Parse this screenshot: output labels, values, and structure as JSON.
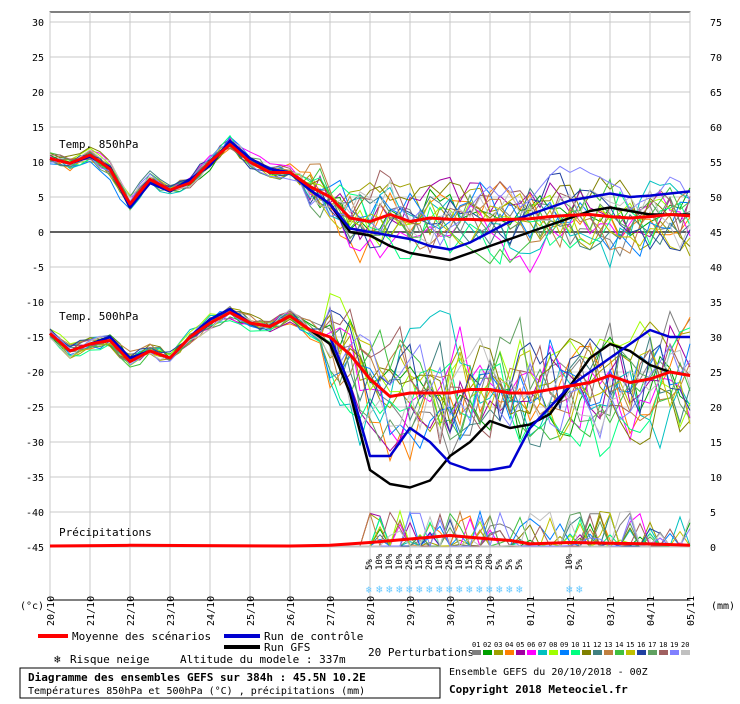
{
  "chart_data": {
    "type": "line",
    "x_dates": [
      "20/10",
      "21/10",
      "22/10",
      "23/10",
      "24/10",
      "25/10",
      "26/10",
      "27/10",
      "28/10",
      "29/10",
      "30/10",
      "31/10",
      "01/11",
      "02/11",
      "03/11",
      "04/11",
      "05/11"
    ],
    "left_axis": {
      "unit_label": "(°c)",
      "ticks": [
        30,
        25,
        20,
        15,
        10,
        5,
        0,
        -5,
        -10,
        -15,
        -20,
        -25,
        -30,
        -35,
        -40,
        -45
      ]
    },
    "right_axis": {
      "unit_label": "(mm)",
      "ticks": [
        75,
        70,
        65,
        60,
        55,
        50,
        45,
        40,
        35,
        30,
        25,
        20,
        15,
        10,
        5,
        0
      ]
    },
    "panels": [
      {
        "label": "Temp. 850hPa",
        "mean": [
          [
            0,
            10.5
          ],
          [
            0.5,
            9.8
          ],
          [
            1,
            11
          ],
          [
            1.5,
            9
          ],
          [
            2,
            4
          ],
          [
            2.5,
            7.5
          ],
          [
            3,
            6
          ],
          [
            3.5,
            7
          ],
          [
            4,
            10
          ],
          [
            4.5,
            12.5
          ],
          [
            5,
            10
          ],
          [
            5.5,
            8.5
          ],
          [
            6,
            8.5
          ],
          [
            6.5,
            6.5
          ],
          [
            7,
            5
          ],
          [
            7.5,
            2
          ],
          [
            8,
            1.5
          ],
          [
            8.5,
            2.5
          ],
          [
            9,
            1.5
          ],
          [
            9.5,
            2
          ],
          [
            10,
            1.8
          ],
          [
            10.5,
            1.8
          ],
          [
            11,
            1.7
          ],
          [
            11.5,
            1.8
          ],
          [
            12,
            1.9
          ],
          [
            12.5,
            2.2
          ],
          [
            13,
            2.4
          ],
          [
            13.5,
            2.5
          ],
          [
            14,
            2.2
          ],
          [
            14.5,
            2.0
          ],
          [
            15,
            2.2
          ],
          [
            15.5,
            2.5
          ],
          [
            16,
            2.3
          ]
        ],
        "control": [
          [
            0,
            10.5
          ],
          [
            0.5,
            9.8
          ],
          [
            1,
            10.8
          ],
          [
            1.5,
            9.2
          ],
          [
            2,
            3.5
          ],
          [
            2.5,
            7
          ],
          [
            3,
            5.8
          ],
          [
            3.5,
            7.5
          ],
          [
            4,
            9.5
          ],
          [
            4.5,
            13
          ],
          [
            5,
            10.5
          ],
          [
            5.5,
            9
          ],
          [
            6,
            8.5
          ],
          [
            6.5,
            6
          ],
          [
            7,
            4
          ],
          [
            7.5,
            0.5
          ],
          [
            8,
            0
          ],
          [
            8.5,
            -0.5
          ],
          [
            9,
            -1
          ],
          [
            9.5,
            -2
          ],
          [
            10,
            -2.5
          ],
          [
            10.5,
            -1.5
          ],
          [
            11,
            0
          ],
          [
            11.5,
            1.5
          ],
          [
            12,
            2.5
          ],
          [
            12.5,
            3.5
          ],
          [
            13,
            4.5
          ],
          [
            13.5,
            5
          ],
          [
            14,
            5.5
          ],
          [
            14.5,
            5
          ],
          [
            15,
            5.2
          ],
          [
            15.5,
            5.5
          ],
          [
            16,
            5.8
          ]
        ],
        "gfs": [
          [
            0,
            10.5
          ],
          [
            0.5,
            9.8
          ],
          [
            1,
            10.8
          ],
          [
            1.5,
            9.2
          ],
          [
            2,
            3.5
          ],
          [
            2.5,
            7
          ],
          [
            3,
            5.8
          ],
          [
            3.5,
            7.5
          ],
          [
            4,
            9.5
          ],
          [
            4.5,
            13
          ],
          [
            5,
            10.5
          ],
          [
            5.5,
            9
          ],
          [
            6,
            8.5
          ],
          [
            6.5,
            6
          ],
          [
            7,
            4
          ],
          [
            7.5,
            0
          ],
          [
            8,
            -0.5
          ],
          [
            8.5,
            -2
          ],
          [
            9,
            -3
          ],
          [
            9.5,
            -3.5
          ],
          [
            10,
            -4
          ],
          [
            10.5,
            -3
          ],
          [
            11,
            -2
          ],
          [
            11.5,
            -1
          ],
          [
            12,
            0
          ],
          [
            12.5,
            1
          ],
          [
            13,
            2
          ],
          [
            13.5,
            3
          ],
          [
            14,
            3.5
          ],
          [
            14.5,
            3
          ],
          [
            15,
            2.5
          ],
          [
            15.5,
            2.5
          ],
          [
            16,
            2.5
          ]
        ]
      },
      {
        "label": "Temp. 500hPa",
        "mean": [
          [
            0,
            -14.5
          ],
          [
            0.5,
            -17
          ],
          [
            1,
            -16
          ],
          [
            1.5,
            -15.5
          ],
          [
            2,
            -18.5
          ],
          [
            2.5,
            -17
          ],
          [
            3,
            -18
          ],
          [
            3.5,
            -15
          ],
          [
            4,
            -13
          ],
          [
            4.5,
            -11.5
          ],
          [
            5,
            -13
          ],
          [
            5.5,
            -13.5
          ],
          [
            6,
            -12
          ],
          [
            6.5,
            -14
          ],
          [
            7,
            -15
          ],
          [
            7.5,
            -17.5
          ],
          [
            8,
            -21
          ],
          [
            8.5,
            -23.5
          ],
          [
            9,
            -23
          ],
          [
            9.5,
            -23
          ],
          [
            10,
            -23
          ],
          [
            10.5,
            -22.5
          ],
          [
            11,
            -22.5
          ],
          [
            11.5,
            -23
          ],
          [
            12,
            -23
          ],
          [
            12.5,
            -22.5
          ],
          [
            13,
            -22
          ],
          [
            13.5,
            -21.5
          ],
          [
            14,
            -20.5
          ],
          [
            14.5,
            -21.5
          ],
          [
            15,
            -21
          ],
          [
            15.5,
            -20
          ],
          [
            16,
            -20.5
          ]
        ],
        "control": [
          [
            0,
            -14.5
          ],
          [
            0.5,
            -17
          ],
          [
            1,
            -16
          ],
          [
            1.5,
            -15
          ],
          [
            2,
            -18
          ],
          [
            2.5,
            -17
          ],
          [
            3,
            -18
          ],
          [
            3.5,
            -15
          ],
          [
            4,
            -12.5
          ],
          [
            4.5,
            -11
          ],
          [
            5,
            -13
          ],
          [
            5.5,
            -13.5
          ],
          [
            6,
            -12
          ],
          [
            6.5,
            -14
          ],
          [
            7,
            -15
          ],
          [
            7.5,
            -22
          ],
          [
            8,
            -32
          ],
          [
            8.5,
            -32
          ],
          [
            9,
            -28
          ],
          [
            9.5,
            -30
          ],
          [
            10,
            -33
          ],
          [
            10.5,
            -34
          ],
          [
            11,
            -34
          ],
          [
            11.5,
            -33.5
          ],
          [
            12,
            -28
          ],
          [
            12.5,
            -25
          ],
          [
            13,
            -22
          ],
          [
            13.5,
            -20
          ],
          [
            14,
            -18
          ],
          [
            14.5,
            -16
          ],
          [
            15,
            -14
          ],
          [
            15.5,
            -15
          ],
          [
            16,
            -15
          ]
        ],
        "gfs": [
          [
            0,
            -14.5
          ],
          [
            0.5,
            -17
          ],
          [
            1,
            -16
          ],
          [
            1.5,
            -15
          ],
          [
            2,
            -18
          ],
          [
            2.5,
            -17
          ],
          [
            3,
            -18
          ],
          [
            3.5,
            -15
          ],
          [
            4,
            -12.5
          ],
          [
            4.5,
            -11
          ],
          [
            5,
            -13
          ],
          [
            5.5,
            -13.5
          ],
          [
            6,
            -12
          ],
          [
            6.5,
            -14
          ],
          [
            7,
            -16
          ],
          [
            7.5,
            -23
          ],
          [
            8,
            -34
          ],
          [
            8.5,
            -36
          ],
          [
            9,
            -36.5
          ],
          [
            9.5,
            -35.5
          ],
          [
            10,
            -32
          ],
          [
            10.5,
            -30
          ],
          [
            11,
            -27
          ],
          [
            11.5,
            -28
          ],
          [
            12,
            -27.5
          ],
          [
            12.5,
            -26
          ],
          [
            13,
            -22
          ],
          [
            13.5,
            -18
          ],
          [
            14,
            -16
          ],
          [
            14.5,
            -17
          ],
          [
            15,
            -19
          ],
          [
            15.5,
            -20
          ],
          [
            16,
            -20.5
          ]
        ]
      },
      {
        "label": "Précipitations",
        "mean": [
          [
            0,
            0
          ],
          [
            2,
            0.1
          ],
          [
            6,
            0
          ],
          [
            7,
            0.1
          ],
          [
            8,
            0.5
          ],
          [
            9,
            1
          ],
          [
            10,
            1.5
          ],
          [
            11,
            1
          ],
          [
            11.5,
            0.8
          ],
          [
            12,
            0.3
          ],
          [
            13,
            0.5
          ],
          [
            14,
            0.4
          ],
          [
            15,
            0.3
          ],
          [
            16,
            0.1
          ]
        ]
      }
    ],
    "snow_risk": [
      {
        "day": 8.0,
        "label": "5%"
      },
      {
        "day": 8.25,
        "label": "10%"
      },
      {
        "day": 8.5,
        "label": "10%"
      },
      {
        "day": 8.75,
        "label": "10%"
      },
      {
        "day": 9.0,
        "label": "25%"
      },
      {
        "day": 9.25,
        "label": "15%"
      },
      {
        "day": 9.5,
        "label": "20%"
      },
      {
        "day": 9.75,
        "label": "10%"
      },
      {
        "day": 10.0,
        "label": "25%"
      },
      {
        "day": 10.25,
        "label": "10%"
      },
      {
        "day": 10.5,
        "label": "15%"
      },
      {
        "day": 10.75,
        "label": "20%"
      },
      {
        "day": 11.0,
        "label": "20%"
      },
      {
        "day": 11.25,
        "label": "5%"
      },
      {
        "day": 11.5,
        "label": "5%"
      },
      {
        "day": 11.75,
        "label": "5%"
      },
      {
        "day": 13.0,
        "label": "10%"
      },
      {
        "day": 13.25,
        "label": "5%"
      }
    ],
    "perturbation_labels": [
      "01",
      "02",
      "03",
      "04",
      "05",
      "06",
      "07",
      "08",
      "09",
      "10",
      "11",
      "12",
      "13",
      "14",
      "15",
      "16",
      "17",
      "18",
      "19",
      "20"
    ],
    "perturbation_colors": [
      "#7f7f7f",
      "#00a000",
      "#a0a000",
      "#ff8000",
      "#a000a0",
      "#ff00ff",
      "#00c0c0",
      "#a0ff00",
      "#0080ff",
      "#00ff80",
      "#808000",
      "#408080",
      "#c08040",
      "#40c040",
      "#c0c000",
      "#2040a0",
      "#60a060",
      "#a06060",
      "#8080ff",
      "#c0c0c0"
    ],
    "colors": {
      "mean": "#ff0000",
      "control": "#0000d0",
      "gfs": "#000000",
      "snow": "#66c8ff"
    }
  },
  "legend": {
    "mean": "Moyenne des scénarios",
    "control": "Run de contrôle",
    "gfs": "Run GFS",
    "snow": "Risque neige",
    "altitude": "Altitude du modele : 337m",
    "perturbations": "20 Perturbations"
  },
  "footer": {
    "title": "Diagramme des ensembles GEFS sur 384h : 45.5N 10.2E",
    "subtitle": "Températures 850hPa et 500hPa (°C) , précipitations (mm)",
    "ensemble": "Ensemble GEFS du 20/10/2018 - 00Z",
    "copyright": "Copyright 2018 Meteociel.fr"
  }
}
